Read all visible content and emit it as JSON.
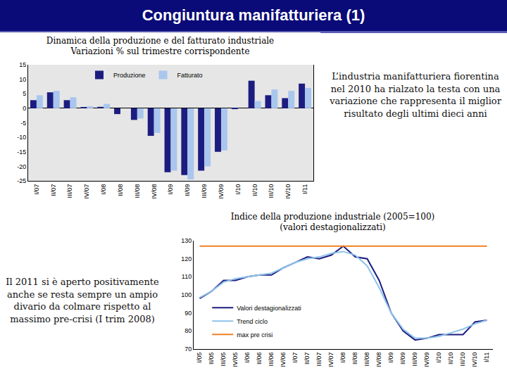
{
  "slide": {
    "title": "Congiuntura manifatturiera (1)",
    "notes": [
      "L’industria manifatturiera fiorentina nel 2010 ha rialzato la testa con una variazione che rappresenta il miglior risultato degli ultimi dieci anni",
      "Il 2011 si è aperto positivamente anche se resta sempre un ampio divario da colmare rispetto al massimo pre-crisi (I trim 2008)"
    ]
  },
  "chart_data": [
    {
      "type": "bar",
      "title": [
        "Dinamica della produzione e del fatturato industriale",
        "Variazioni % sul trimestre corrispondente"
      ],
      "categories": [
        "I/07",
        "II/07",
        "III/07",
        "IV/07",
        "I/08",
        "II/08",
        "III/08",
        "IV/08",
        "I/09",
        "II/09",
        "III/09",
        "IV/09",
        "I/10",
        "II/10",
        "III/10",
        "IV/10",
        "I/11"
      ],
      "series": [
        {
          "name": "Produzione",
          "color": "#1c1c80",
          "values": [
            2.8,
            5.5,
            2.8,
            0.3,
            0.5,
            -2,
            -4,
            -9.5,
            -22,
            -23,
            -21.5,
            -15,
            -0.3,
            9.5,
            4.5,
            3.5,
            8.5
          ]
        },
        {
          "name": "Fatturato",
          "color": "#a9c6ee",
          "values": [
            4.5,
            6,
            3.8,
            0.7,
            1.5,
            0,
            -3.5,
            -8.5,
            -21.5,
            -24.5,
            -20,
            -14.5,
            0,
            2.5,
            6.5,
            6,
            7
          ]
        }
      ],
      "ylim": [
        -25,
        15
      ],
      "yticks": [
        -25,
        -20,
        -15,
        -10,
        -5,
        0,
        5,
        10,
        15
      ],
      "grid": false,
      "legend": "top"
    },
    {
      "type": "line",
      "title": [
        "Indice della produzione industriale (2005=100)",
        "(valori destagionalizzati)"
      ],
      "categories": [
        "I/05",
        "II/05",
        "III/05",
        "IV/05",
        "I/06",
        "II/06",
        "III/06",
        "IV/06",
        "I/07",
        "II/07",
        "III/07",
        "IV/07",
        "I/08",
        "II/08",
        "III/08",
        "IV/08",
        "I/09",
        "II/09",
        "III/09",
        "IV/09",
        "I/10",
        "II/10",
        "III/10",
        "IV/10",
        "I/11"
      ],
      "series": [
        {
          "name": "Valori destagionalizzati",
          "color": "#1c1c80",
          "values": [
            98,
            102,
            108,
            108,
            110,
            111,
            111,
            115,
            118,
            121,
            120,
            122,
            127,
            121,
            120,
            108,
            90,
            80,
            75,
            76,
            78,
            78,
            78,
            85,
            86
          ]
        },
        {
          "name": "Trend ciclo",
          "color": "#8fc3ea",
          "values": [
            98.5,
            102,
            107,
            109,
            110,
            111,
            112,
            115,
            118,
            120,
            121,
            123,
            124,
            122,
            116,
            104,
            90,
            81,
            76,
            76,
            77,
            79,
            81,
            84,
            86
          ]
        },
        {
          "name": "max pre crisi",
          "color": "#f07f22",
          "values": [
            127,
            127,
            127,
            127,
            127,
            127,
            127,
            127,
            127,
            127,
            127,
            127,
            127,
            127,
            127,
            127,
            127,
            127,
            127,
            127,
            127,
            127,
            127,
            127,
            127
          ]
        }
      ],
      "ylim": [
        70,
        130
      ],
      "yticks": [
        70,
        80,
        90,
        100,
        110,
        120,
        130
      ],
      "grid": false,
      "legend": "bottom left"
    }
  ]
}
